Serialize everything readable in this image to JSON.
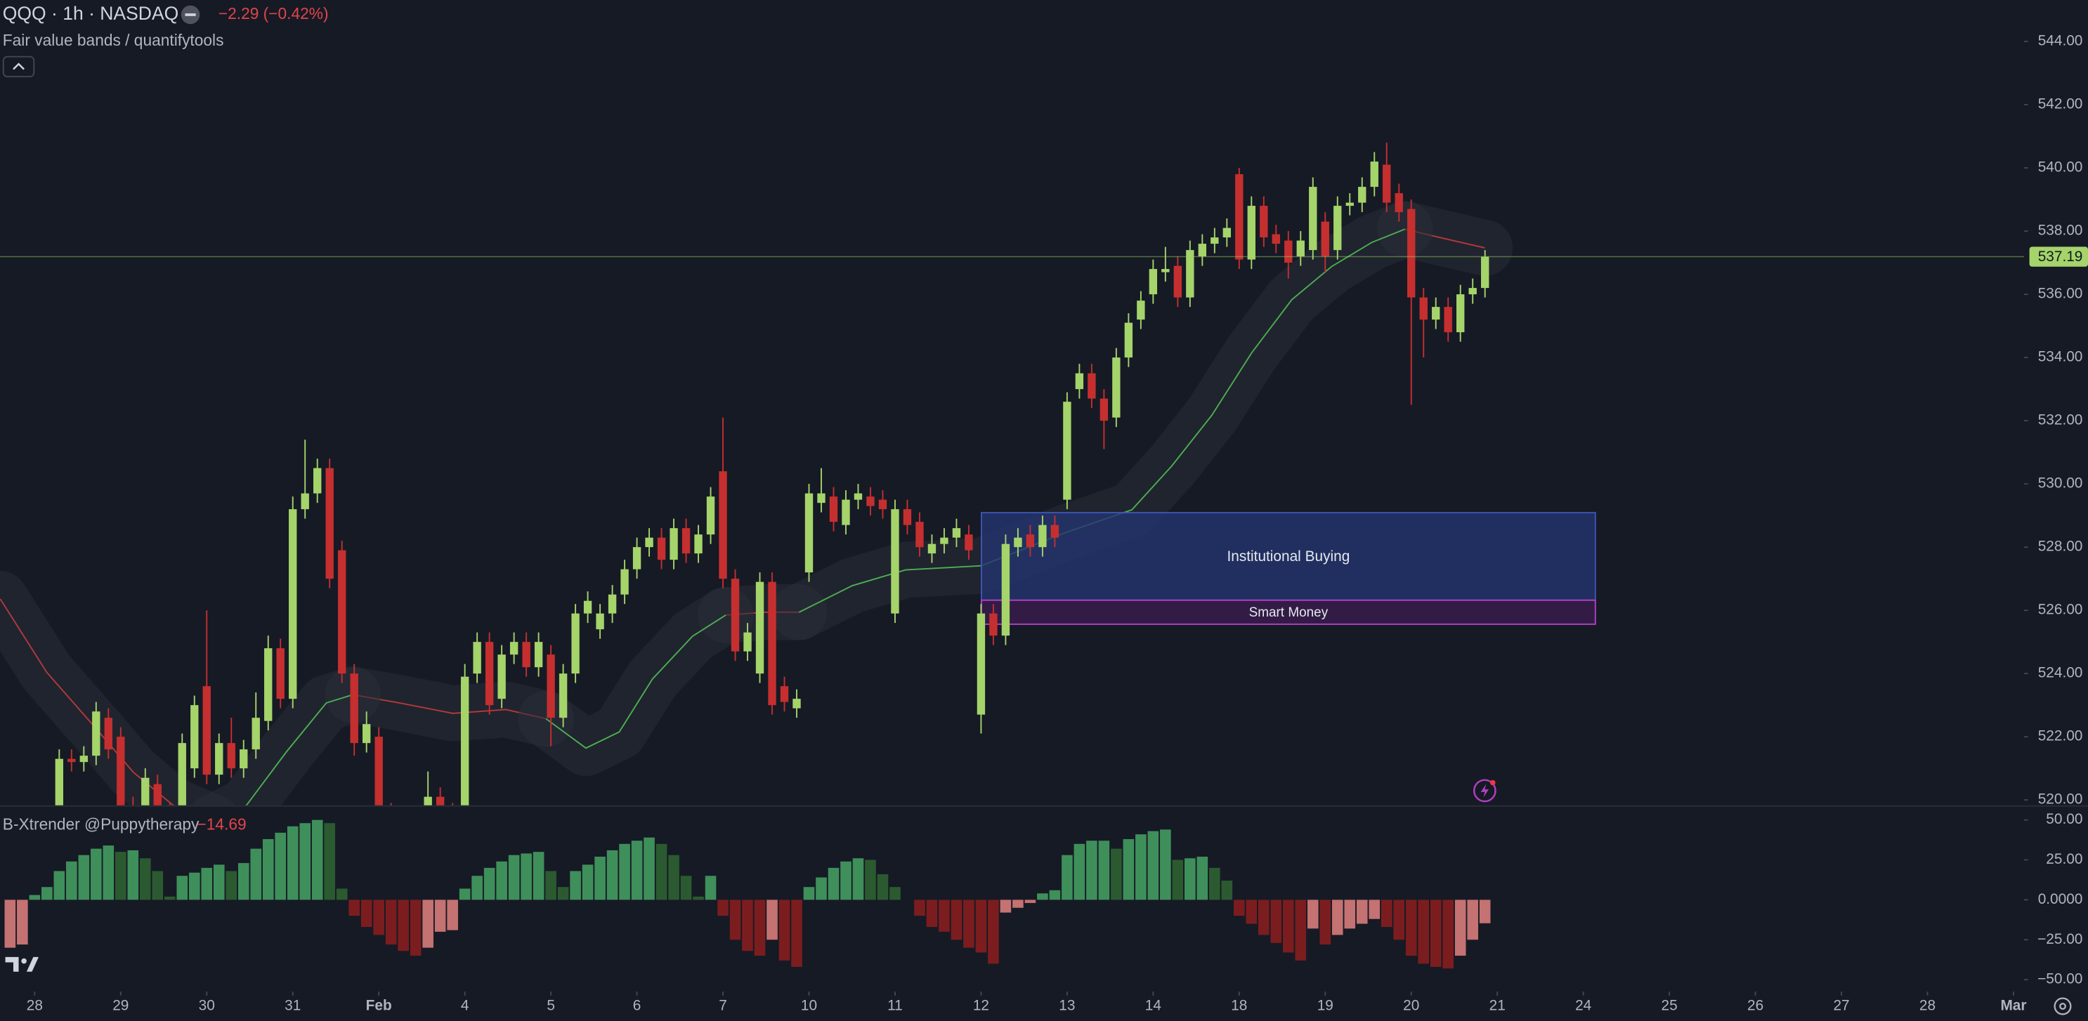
{
  "chart_data": [
    {
      "type": "candlestick",
      "title": "QQQ · 1h · NASDAQ",
      "change": "−2.29 (−0.42%)",
      "indicator": "Fair value bands / quantifytools",
      "up_color": "#a5d46a",
      "down_color": "#c62f2f",
      "xlim": [
        -0.82,
        163.86
      ],
      "ylim": [
        519.83,
        545.31
      ],
      "yticks": [
        {
          "value": 520,
          "label": "520.00"
        },
        {
          "value": 522,
          "label": "522.00"
        },
        {
          "value": 524,
          "label": "524.00"
        },
        {
          "value": 526,
          "label": "526.00"
        },
        {
          "value": 528,
          "label": "528.00"
        },
        {
          "value": 530,
          "label": "530.00"
        },
        {
          "value": 532,
          "label": "532.00"
        },
        {
          "value": 534,
          "label": "534.00"
        },
        {
          "value": 536,
          "label": "536.00"
        },
        {
          "value": 538,
          "label": "538.00"
        },
        {
          "value": 540,
          "label": "540.00"
        },
        {
          "value": 542,
          "label": "542.00"
        },
        {
          "value": 544,
          "label": "544.00"
        }
      ],
      "xticks": [
        {
          "value": 2,
          "label": "28"
        },
        {
          "value": 9,
          "label": "29"
        },
        {
          "value": 16,
          "label": "30"
        },
        {
          "value": 23,
          "label": "31"
        },
        {
          "value": 30,
          "label": "Feb"
        },
        {
          "value": 37,
          "label": "4"
        },
        {
          "value": 44,
          "label": "5"
        },
        {
          "value": 51,
          "label": "6"
        },
        {
          "value": 58,
          "label": "7"
        },
        {
          "value": 65,
          "label": "10"
        },
        {
          "value": 72,
          "label": "11"
        },
        {
          "value": 79,
          "label": "12"
        },
        {
          "value": 86,
          "label": "13"
        },
        {
          "value": 93,
          "label": "14"
        },
        {
          "value": 100,
          "label": "18"
        },
        {
          "value": 107,
          "label": "19"
        },
        {
          "value": 114,
          "label": "20"
        },
        {
          "value": 121,
          "label": "21"
        },
        {
          "value": 128,
          "label": "24"
        },
        {
          "value": 135,
          "label": "25"
        },
        {
          "value": 142,
          "label": "26"
        },
        {
          "value": 149,
          "label": "27"
        },
        {
          "value": 156,
          "label": "28"
        },
        {
          "value": 163,
          "label": "Mar"
        }
      ],
      "grid": false,
      "open": [
        519.5,
        519.4,
        519.2,
        518.9,
        519.5,
        521.3,
        521.2,
        521.4,
        522.6,
        522.0,
        519.8,
        519.5,
        520.5,
        519.6,
        519.4,
        521.0,
        523.6,
        520.8,
        521.8,
        521.0,
        521.6,
        522.5,
        524.8,
        523.2,
        529.2,
        529.7,
        530.5,
        527.9,
        524.0,
        521.8,
        522.0,
        519.6,
        519.0,
        518.6,
        519.3,
        520.1,
        519.6,
        519.2,
        524.0,
        525.0,
        523.2,
        524.6,
        525.0,
        524.2,
        524.6,
        522.6,
        524.0,
        525.9,
        525.4,
        525.9,
        526.5,
        527.3,
        528.0,
        528.3,
        527.6,
        528.6,
        527.8,
        528.4,
        530.4,
        527.0,
        524.7,
        524.0,
        526.9,
        523.6,
        522.9,
        527.2,
        529.4,
        529.6,
        528.7,
        529.5,
        529.6,
        529.5,
        525.9,
        529.2,
        528.8,
        527.8,
        528.1,
        528.3,
        528.4,
        522.7,
        525.9,
        525.2,
        528.0,
        528.4,
        528.0,
        528.7,
        529.5,
        533.0,
        533.5,
        532.7,
        532.1,
        534.0,
        535.2,
        536.0,
        536.7,
        536.9,
        535.9,
        537.2,
        537.6,
        537.8,
        539.8,
        537.1,
        538.8,
        537.9,
        537.7,
        537.2,
        537.4,
        538.3,
        537.4,
        538.8,
        538.9,
        539.4,
        540.1,
        539.2,
        538.7,
        535.9,
        535.2,
        535.6,
        534.8,
        536.0,
        536.2
      ],
      "high": [
        519.7,
        519.6,
        519.5,
        519.8,
        521.6,
        521.6,
        521.7,
        523.1,
        522.9,
        522.3,
        520.1,
        521.0,
        520.8,
        519.9,
        522.1,
        523.3,
        526.0,
        522.1,
        522.6,
        521.9,
        523.4,
        525.2,
        525.1,
        529.6,
        531.4,
        530.8,
        530.8,
        528.2,
        524.3,
        522.8,
        522.3,
        519.9,
        519.3,
        519.6,
        520.9,
        520.4,
        519.9,
        524.3,
        525.3,
        525.3,
        524.9,
        525.3,
        525.3,
        525.3,
        524.9,
        524.3,
        526.2,
        526.6,
        526.2,
        526.8,
        527.6,
        528.3,
        528.6,
        528.6,
        528.9,
        528.9,
        528.7,
        529.9,
        532.1,
        527.3,
        525.6,
        527.2,
        527.2,
        523.9,
        523.5,
        530.0,
        530.5,
        529.9,
        529.8,
        530.0,
        529.9,
        529.8,
        529.5,
        529.5,
        529.1,
        528.4,
        528.6,
        528.9,
        528.7,
        526.2,
        526.2,
        528.4,
        528.6,
        528.7,
        529.0,
        529.0,
        532.9,
        533.8,
        533.8,
        533.0,
        534.3,
        535.4,
        536.1,
        537.1,
        537.5,
        537.2,
        537.7,
        537.9,
        538.1,
        538.4,
        540.0,
        539.1,
        539.1,
        538.2,
        538.0,
        538.0,
        539.7,
        538.6,
        539.1,
        539.2,
        539.7,
        540.5,
        540.8,
        539.5,
        539.0,
        536.2,
        535.9,
        535.9,
        536.3,
        536.5,
        537.4
      ],
      "low": [
        519.1,
        518.9,
        518.6,
        518.6,
        519.2,
        520.9,
        520.9,
        521.1,
        521.3,
        519.5,
        519.2,
        519.2,
        519.3,
        519.1,
        519.1,
        520.7,
        520.5,
        520.5,
        520.7,
        520.7,
        521.3,
        522.2,
        522.9,
        522.9,
        528.9,
        529.4,
        526.7,
        523.7,
        521.4,
        521.5,
        519.3,
        518.7,
        518.3,
        518.3,
        519.0,
        519.3,
        518.9,
        518.9,
        523.7,
        522.7,
        522.9,
        524.3,
        523.9,
        523.9,
        521.7,
        522.3,
        523.7,
        525.6,
        525.1,
        525.6,
        526.2,
        527.0,
        527.7,
        527.3,
        527.3,
        527.5,
        527.5,
        528.1,
        526.7,
        524.4,
        524.4,
        523.7,
        522.7,
        522.8,
        522.6,
        526.9,
        529.1,
        528.5,
        528.4,
        529.2,
        529.0,
        528.9,
        525.6,
        528.4,
        527.7,
        527.5,
        527.8,
        528.0,
        527.6,
        522.1,
        524.9,
        524.9,
        527.7,
        527.7,
        527.7,
        528.0,
        529.2,
        532.7,
        532.4,
        531.1,
        531.8,
        533.7,
        534.9,
        535.7,
        536.4,
        535.6,
        535.6,
        536.9,
        537.3,
        537.5,
        536.8,
        536.8,
        537.5,
        537.3,
        536.5,
        536.9,
        537.1,
        536.7,
        537.1,
        538.5,
        538.6,
        539.1,
        538.6,
        538.3,
        532.5,
        534.0,
        534.9,
        534.5,
        534.5,
        535.7,
        535.9
      ],
      "close": [
        519.4,
        519.2,
        518.9,
        519.5,
        521.3,
        521.2,
        521.4,
        522.8,
        521.6,
        519.8,
        519.5,
        520.7,
        519.6,
        519.4,
        521.8,
        523.0,
        520.8,
        521.8,
        521.0,
        521.6,
        522.6,
        524.8,
        523.2,
        529.2,
        529.7,
        530.5,
        527.0,
        524.0,
        521.8,
        522.4,
        519.6,
        519.0,
        518.6,
        519.3,
        520.1,
        519.6,
        519.2,
        523.9,
        525.0,
        523.0,
        524.6,
        525.0,
        524.2,
        525.0,
        522.6,
        524.0,
        525.9,
        526.3,
        525.9,
        526.5,
        527.3,
        528.0,
        528.3,
        527.6,
        528.6,
        527.8,
        528.4,
        529.6,
        527.0,
        524.7,
        525.3,
        526.9,
        523.0,
        523.1,
        523.2,
        529.7,
        529.7,
        528.8,
        529.5,
        529.7,
        529.3,
        529.2,
        529.2,
        528.7,
        528.0,
        528.1,
        528.3,
        528.6,
        527.9,
        525.9,
        525.2,
        528.1,
        528.3,
        528.0,
        528.7,
        528.3,
        532.6,
        533.5,
        532.7,
        532.0,
        534.0,
        535.1,
        535.8,
        536.8,
        536.8,
        535.9,
        537.4,
        537.6,
        537.8,
        538.1,
        537.1,
        538.8,
        537.8,
        537.6,
        537.0,
        537.7,
        539.4,
        537.2,
        538.8,
        538.9,
        539.4,
        540.2,
        538.9,
        538.6,
        535.9,
        535.2,
        535.6,
        534.8,
        536.0,
        536.2,
        537.19
      ],
      "last_color": "#a5d46a",
      "fair_value": {
        "band_color": "#2a2d38",
        "x": [
          -0.8,
          2.98,
          6.77,
          10.02,
          13.27,
          16.52,
          19.23,
          22.48,
          25.73,
          27.89,
          31.69,
          36.02,
          40.35,
          43.6,
          46.85,
          49.56,
          52.27,
          55.52,
          58.23,
          61.48,
          64.19,
          68.52,
          72.86,
          79.03,
          85.86,
          91.27,
          94.52,
          97.77,
          101.02,
          104.28,
          107.53,
          110.78,
          113.48,
          116.19,
          119.98
        ],
        "series": [
          {
            "color": "#b5393a",
            "values": [
              526.36,
              524.04,
              522.36,
              520.88,
              519.83,
              519.28,
              null,
              null,
              null,
              523.33,
              523.07,
              522.74,
              522.86,
              522.57,
              null,
              null,
              null,
              null,
              525.85,
              525.94,
              525.94,
              null,
              null,
              null,
              null,
              null,
              null,
              null,
              null,
              null,
              null,
              null,
              538.06,
              537.81,
              537.47
            ]
          },
          {
            "color": "#4caf50",
            "values": [
              null,
              null,
              null,
              null,
              null,
              519.28,
              519.83,
              521.52,
              523.07,
              523.33,
              null,
              null,
              null,
              522.57,
              521.64,
              522.15,
              523.83,
              525.18,
              525.85,
              null,
              525.94,
              526.78,
              527.28,
              527.41,
              528.46,
              529.18,
              530.57,
              532.17,
              534.15,
              535.83,
              536.88,
              537.64,
              538.06,
              null,
              null
            ]
          }
        ]
      },
      "zones": [
        {
          "label": "Institutional Buying",
          "x0": 79.03,
          "x1": 128.98,
          "top": 529.09,
          "bottom": 526.32,
          "color": "#24346f",
          "border": "#3d55b8"
        },
        {
          "label": "Smart Money",
          "x0": 79.03,
          "x1": 128.98,
          "top": 526.32,
          "bottom": 525.56,
          "color": "#3a1d4f",
          "border": "#b13fc3"
        }
      ]
    },
    {
      "type": "bar",
      "title": "B-Xtrender @Puppytherapy",
      "last_label": "−14.69",
      "ylim": [
        -56.67,
        58.33
      ],
      "yticks": [
        {
          "value": 50,
          "label": "50.00"
        },
        {
          "value": 25,
          "label": "25.00"
        },
        {
          "value": 0,
          "label": "0.0000"
        },
        {
          "value": -25,
          "label": "−25.00"
        },
        {
          "value": -50,
          "label": "−50.00"
        }
      ],
      "colors": [
        "#3f8f5b",
        "#2b5a30",
        "#c47272",
        "#7b1d1f"
      ],
      "values": [
        -30,
        -28,
        3,
        8,
        18,
        24,
        28,
        32,
        34,
        30,
        31,
        26,
        18,
        2,
        15,
        17,
        20,
        22,
        18,
        23,
        32,
        38,
        42,
        46,
        48,
        50,
        48,
        7,
        -10,
        -17,
        -22,
        -28,
        -32,
        -35,
        -30,
        -20,
        -19,
        7,
        15,
        20,
        24,
        28,
        29,
        30,
        18,
        8,
        18,
        22,
        27,
        31,
        35,
        37,
        39,
        35,
        28,
        15,
        2,
        15,
        -10,
        -25,
        -32,
        -35,
        -25,
        -38,
        -42,
        8,
        14,
        20,
        24,
        26,
        25,
        16,
        8,
        0,
        -10,
        -17,
        -20,
        -25,
        -30,
        -33,
        -40,
        -8,
        -5,
        -2,
        4,
        6,
        28,
        35,
        37,
        37,
        32,
        38,
        41,
        43,
        44,
        25,
        26,
        27,
        20,
        12,
        -10,
        -15,
        -22,
        -27,
        -33,
        -38,
        -18,
        -28,
        -22,
        -18,
        -15,
        -12,
        -17,
        -25,
        -35,
        -40,
        -42,
        -43,
        -35,
        -25,
        -14.69
      ]
    }
  ]
}
